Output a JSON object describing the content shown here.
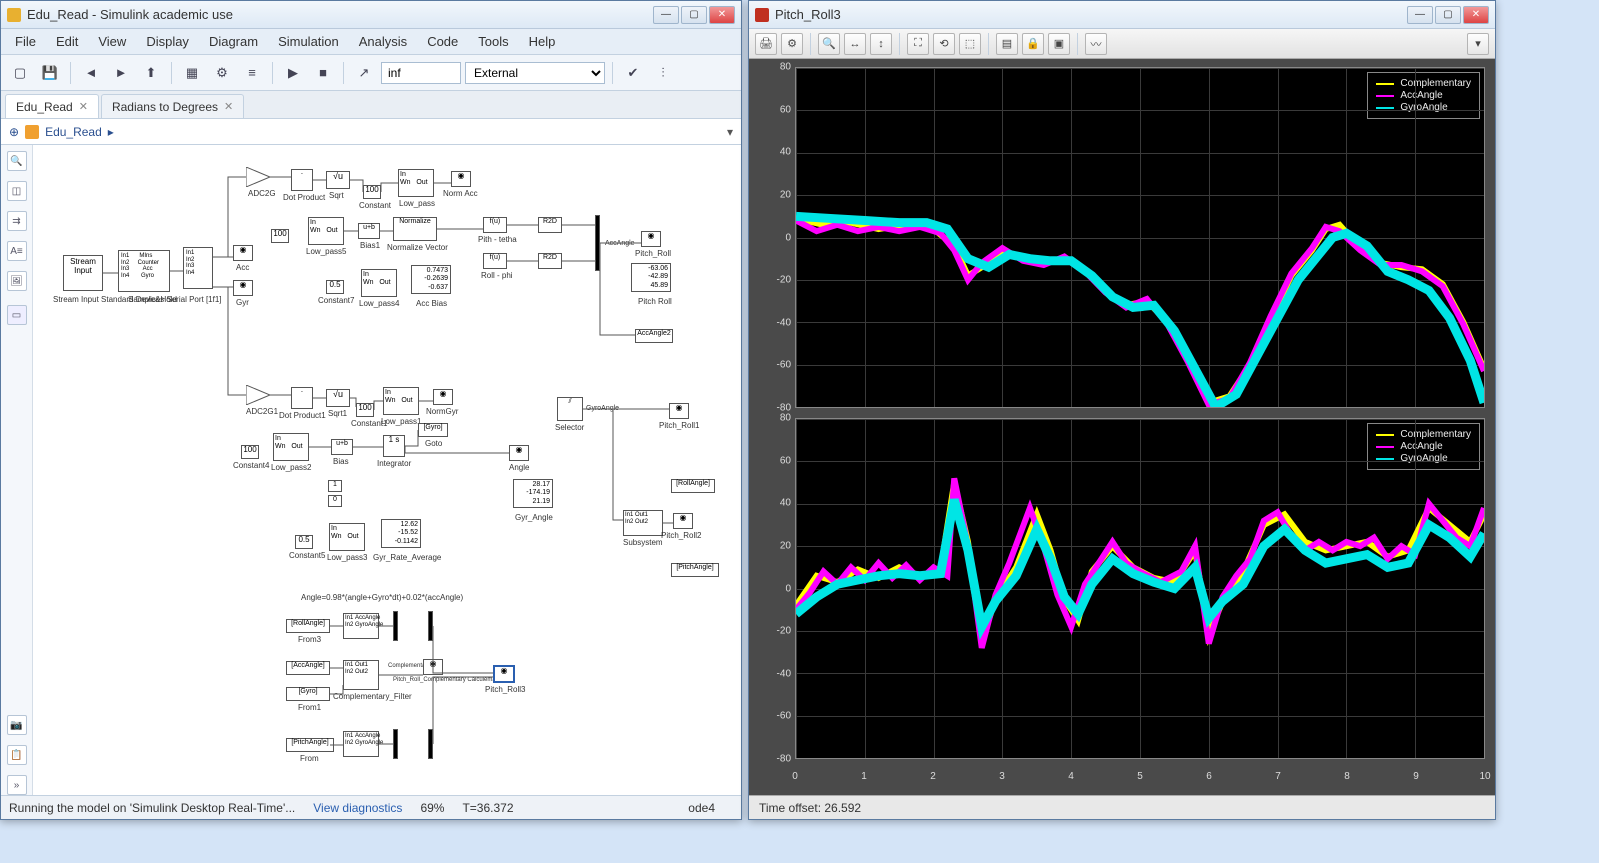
{
  "simulink": {
    "title": "Edu_Read - Simulink academic use",
    "menu": [
      "File",
      "Edit",
      "View",
      "Display",
      "Diagram",
      "Simulation",
      "Analysis",
      "Code",
      "Tools",
      "Help"
    ],
    "stop_time": "inf",
    "sim_mode": "External",
    "tabs": [
      {
        "label": "Edu_Read"
      },
      {
        "label": "Radians to Degrees"
      }
    ],
    "breadcrumb": "Edu_Read",
    "status": {
      "running": "Running the model on 'Simulink Desktop Real-Time'...",
      "diag": "View diagnostics",
      "pct": "69%",
      "t": "T=36.372",
      "solver": "ode4"
    },
    "blocks": {
      "stream_input": "Stream\nInput",
      "stream_input_sub": "Stream Input\nStandard Devices\nSerial Port [1f1]",
      "sample_hold": "Sample&Hold",
      "acc": "Acc",
      "gyr": "Gyr",
      "adc2g": "ADC2G",
      "adc2g1": "ADC2G1",
      "dot_product": "Dot Product",
      "dot_product1": "Dot Product1",
      "sqrt": "Sqrt",
      "sqrt1": "Sqrt1",
      "constant": "Constant",
      "constant1": "Constant1",
      "constant4": "Constant4",
      "constant5": "Constant5",
      "constant7": "Constant7",
      "const_100": "100",
      "const_05": "0.5",
      "const_1": "1",
      "low_pass": "Low_pass",
      "low_pass1": "Low_pass1",
      "low_pass2": "Low_pass2",
      "low_pass3": "Low_pass3",
      "low_pass4": "Low_pass4",
      "low_pass5": "Low_pass5",
      "norm_acc": "Norm Acc",
      "norm_gyr": "NormGyr",
      "normalize": "Normalize",
      "normalize_vector": "Normalize Vector",
      "bias": "Bias",
      "bias1": "Bias1",
      "r2d": "R2D",
      "pitch_theta": "Pith - tetha",
      "roll_phi": "Roll - phi",
      "acc_bias": "Acc Bias",
      "acc_bias_vals": [
        "0.7473",
        "-0.2639",
        "-0.637"
      ],
      "integrator": "Integrator",
      "goto": "Goto",
      "gyro_tag": "[Gyro]",
      "angle": "Angle",
      "selector": "Selector",
      "gyr_angle": "Gyr_Angle",
      "gyr_angle_vals": [
        "28.17",
        "-174.19",
        "21.19"
      ],
      "gyr_rate_avg": "Gyr_Rate_Average",
      "gyr_rate_vals": [
        "12.62",
        "-15.52",
        "-0.1142"
      ],
      "pitch_roll_disp": [
        "-63.06",
        "-42.89",
        "45.89"
      ],
      "pitch_roll": "Pitch Roll",
      "acc_angle": "AccAngle",
      "pitch_roll1": "Pitch_Roll1",
      "pitch_roll2": "Pitch_Roll2",
      "pitch_roll3": "Pitch_Roll3",
      "roll_angle_tag": "[RollAngle]",
      "acc_angle_tag": "[AccAngle2]",
      "pitch_angle_tag": "[PitchAngle]",
      "gyro_angle_tag": "GyroAngle",
      "subsystem": "Subsystem",
      "comment": "Angle=0.98*(angle+Gyro*dt)+0.02*(accAngle)",
      "from": "From",
      "from1": "From1",
      "from3": "From3",
      "comp_filter": "Complementary_Filter",
      "pitch_roll_comp": "Pitch_Roll_Complementary\nCalculemagicy",
      "complementary": "Complementary",
      "roll_angle_from": "[RollAngle]",
      "acc_angle_from": "[AccAngle]",
      "gyro_from": "[Gyro]",
      "pitch_angle_from": "[PitchAngle]",
      "in_wn": "In\nWn",
      "out": "Out",
      "u_b": "u+b",
      "one_s": "1\ns",
      "fu": "f(u)"
    }
  },
  "scope": {
    "title": "Pitch_Roll3",
    "time_offset": "Time offset:   26.592",
    "legend": [
      {
        "label": "Complementary",
        "color": "#ffff00"
      },
      {
        "label": "AccAngle",
        "color": "#ff00ff"
      },
      {
        "label": "GyroAngle",
        "color": "#00e5e5"
      }
    ],
    "plot1": {
      "ylim": [
        -80,
        80
      ],
      "ytick_step": 20,
      "xlim": [
        0,
        10
      ],
      "xtick_step": 1,
      "bg": "#000000",
      "grid": "#3a3a3a",
      "series": [
        {
          "color": "#ffff00",
          "width": 1,
          "data": [
            [
              0,
              9
            ],
            [
              0.4,
              6
            ],
            [
              0.8,
              7
            ],
            [
              1.2,
              4
            ],
            [
              1.6,
              6
            ],
            [
              2.0,
              4
            ],
            [
              2.3,
              -4
            ],
            [
              2.5,
              -18
            ],
            [
              2.7,
              -14
            ],
            [
              3.0,
              -6
            ],
            [
              3.3,
              -10
            ],
            [
              3.6,
              -12
            ],
            [
              3.9,
              -10
            ],
            [
              4.2,
              -15
            ],
            [
              4.5,
              -25
            ],
            [
              4.8,
              -32
            ],
            [
              5.1,
              -30
            ],
            [
              5.4,
              -40
            ],
            [
              5.7,
              -58
            ],
            [
              6.0,
              -78
            ],
            [
              6.3,
              -75
            ],
            [
              6.6,
              -60
            ],
            [
              6.9,
              -38
            ],
            [
              7.2,
              -18
            ],
            [
              7.5,
              -6
            ],
            [
              7.7,
              4
            ],
            [
              7.9,
              6
            ],
            [
              8.2,
              -5
            ],
            [
              8.5,
              -12
            ],
            [
              8.8,
              -14
            ],
            [
              9.1,
              -15
            ],
            [
              9.4,
              -22
            ],
            [
              9.7,
              -40
            ],
            [
              10,
              -62
            ]
          ]
        },
        {
          "color": "#ff00ff",
          "width": 1,
          "data": [
            [
              0,
              8
            ],
            [
              0.3,
              3
            ],
            [
              0.6,
              6
            ],
            [
              0.9,
              3
            ],
            [
              1.2,
              5
            ],
            [
              1.5,
              3
            ],
            [
              1.8,
              5
            ],
            [
              2.1,
              2
            ],
            [
              2.3,
              -6
            ],
            [
              2.5,
              -20
            ],
            [
              2.7,
              -12
            ],
            [
              3.0,
              -5
            ],
            [
              3.3,
              -11
            ],
            [
              3.6,
              -13
            ],
            [
              3.9,
              -9
            ],
            [
              4.2,
              -16
            ],
            [
              4.5,
              -26
            ],
            [
              4.8,
              -33
            ],
            [
              5.1,
              -29
            ],
            [
              5.4,
              -41
            ],
            [
              5.7,
              -59
            ],
            [
              6.0,
              -79
            ],
            [
              6.3,
              -76
            ],
            [
              6.6,
              -59
            ],
            [
              6.9,
              -37
            ],
            [
              7.2,
              -17
            ],
            [
              7.5,
              -5
            ],
            [
              7.7,
              5
            ],
            [
              7.9,
              3
            ],
            [
              8.2,
              -6
            ],
            [
              8.5,
              -13
            ],
            [
              8.8,
              -13
            ],
            [
              9.1,
              -16
            ],
            [
              9.4,
              -23
            ],
            [
              9.7,
              -41
            ],
            [
              10,
              -63
            ]
          ]
        },
        {
          "color": "#00e5e5",
          "width": 1.5,
          "data": [
            [
              0,
              10
            ],
            [
              0.5,
              9
            ],
            [
              1.0,
              8
            ],
            [
              1.5,
              7
            ],
            [
              1.9,
              7
            ],
            [
              2.2,
              4
            ],
            [
              2.5,
              -10
            ],
            [
              2.8,
              -14
            ],
            [
              3.1,
              -8
            ],
            [
              3.4,
              -10
            ],
            [
              3.7,
              -11
            ],
            [
              4.0,
              -11
            ],
            [
              4.3,
              -18
            ],
            [
              4.6,
              -28
            ],
            [
              4.9,
              -33
            ],
            [
              5.2,
              -32
            ],
            [
              5.5,
              -44
            ],
            [
              5.8,
              -62
            ],
            [
              6.1,
              -80
            ],
            [
              6.4,
              -74
            ],
            [
              6.7,
              -56
            ],
            [
              7.0,
              -38
            ],
            [
              7.3,
              -20
            ],
            [
              7.6,
              -8
            ],
            [
              7.8,
              0
            ],
            [
              8.0,
              2
            ],
            [
              8.3,
              -4
            ],
            [
              8.6,
              -16
            ],
            [
              8.9,
              -20
            ],
            [
              9.2,
              -25
            ],
            [
              9.5,
              -38
            ],
            [
              9.8,
              -58
            ],
            [
              10,
              -78
            ]
          ]
        }
      ]
    },
    "plot2": {
      "ylim": [
        -80,
        80
      ],
      "ytick_step": 20,
      "xlim": [
        0,
        10
      ],
      "xtick_step": 1,
      "bg": "#000000",
      "grid": "#3a3a3a",
      "series": [
        {
          "color": "#ffff00",
          "width": 1,
          "data": [
            [
              0,
              -8
            ],
            [
              0.3,
              6
            ],
            [
              0.6,
              3
            ],
            [
              0.9,
              9
            ],
            [
              1.2,
              5
            ],
            [
              1.5,
              10
            ],
            [
              1.8,
              6
            ],
            [
              2.1,
              9
            ],
            [
              2.3,
              50
            ],
            [
              2.5,
              22
            ],
            [
              2.7,
              -25
            ],
            [
              2.9,
              -5
            ],
            [
              3.2,
              10
            ],
            [
              3.5,
              35
            ],
            [
              3.7,
              18
            ],
            [
              3.9,
              -5
            ],
            [
              4.1,
              -15
            ],
            [
              4.3,
              8
            ],
            [
              4.6,
              20
            ],
            [
              4.9,
              10
            ],
            [
              5.2,
              5
            ],
            [
              5.5,
              3
            ],
            [
              5.8,
              18
            ],
            [
              6.0,
              -22
            ],
            [
              6.2,
              -6
            ],
            [
              6.5,
              8
            ],
            [
              6.8,
              30
            ],
            [
              7.1,
              35
            ],
            [
              7.4,
              22
            ],
            [
              7.7,
              18
            ],
            [
              8.0,
              20
            ],
            [
              8.3,
              22
            ],
            [
              8.6,
              15
            ],
            [
              8.9,
              18
            ],
            [
              9.2,
              38
            ],
            [
              9.5,
              30
            ],
            [
              9.8,
              22
            ],
            [
              10,
              35
            ]
          ]
        },
        {
          "color": "#ff00ff",
          "width": 1,
          "data": [
            [
              0,
              -10
            ],
            [
              0.2,
              -2
            ],
            [
              0.4,
              8
            ],
            [
              0.6,
              2
            ],
            [
              0.8,
              10
            ],
            [
              1.0,
              4
            ],
            [
              1.2,
              12
            ],
            [
              1.4,
              5
            ],
            [
              1.6,
              11
            ],
            [
              1.8,
              4
            ],
            [
              2.0,
              10
            ],
            [
              2.2,
              6
            ],
            [
              2.3,
              52
            ],
            [
              2.5,
              20
            ],
            [
              2.7,
              -28
            ],
            [
              2.9,
              -3
            ],
            [
              3.1,
              12
            ],
            [
              3.4,
              38
            ],
            [
              3.6,
              20
            ],
            [
              3.8,
              -3
            ],
            [
              4.0,
              -18
            ],
            [
              4.2,
              2
            ],
            [
              4.4,
              12
            ],
            [
              4.6,
              22
            ],
            [
              4.8,
              12
            ],
            [
              5.0,
              8
            ],
            [
              5.3,
              3
            ],
            [
              5.6,
              8
            ],
            [
              5.8,
              20
            ],
            [
              6.0,
              -26
            ],
            [
              6.2,
              -4
            ],
            [
              6.4,
              6
            ],
            [
              6.6,
              14
            ],
            [
              6.8,
              32
            ],
            [
              7.0,
              36
            ],
            [
              7.2,
              25
            ],
            [
              7.4,
              18
            ],
            [
              7.6,
              22
            ],
            [
              7.8,
              18
            ],
            [
              8.0,
              22
            ],
            [
              8.2,
              20
            ],
            [
              8.4,
              24
            ],
            [
              8.6,
              14
            ],
            [
              8.8,
              20
            ],
            [
              9.0,
              16
            ],
            [
              9.2,
              40
            ],
            [
              9.4,
              32
            ],
            [
              9.6,
              24
            ],
            [
              9.8,
              20
            ],
            [
              10,
              38
            ]
          ]
        },
        {
          "color": "#00e5e5",
          "width": 1.5,
          "data": [
            [
              0,
              -12
            ],
            [
              0.3,
              -4
            ],
            [
              0.6,
              2
            ],
            [
              0.9,
              4
            ],
            [
              1.2,
              6
            ],
            [
              1.5,
              7
            ],
            [
              1.8,
              6
            ],
            [
              2.1,
              7
            ],
            [
              2.3,
              42
            ],
            [
              2.5,
              18
            ],
            [
              2.7,
              -18
            ],
            [
              2.9,
              -6
            ],
            [
              3.2,
              6
            ],
            [
              3.5,
              28
            ],
            [
              3.7,
              14
            ],
            [
              3.9,
              -4
            ],
            [
              4.1,
              -12
            ],
            [
              4.3,
              2
            ],
            [
              4.6,
              14
            ],
            [
              4.9,
              7
            ],
            [
              5.2,
              3
            ],
            [
              5.5,
              0
            ],
            [
              5.8,
              10
            ],
            [
              6.0,
              -14
            ],
            [
              6.2,
              -6
            ],
            [
              6.5,
              2
            ],
            [
              6.8,
              20
            ],
            [
              7.1,
              28
            ],
            [
              7.4,
              18
            ],
            [
              7.7,
              12
            ],
            [
              8.0,
              14
            ],
            [
              8.3,
              16
            ],
            [
              8.6,
              10
            ],
            [
              8.9,
              12
            ],
            [
              9.2,
              30
            ],
            [
              9.5,
              24
            ],
            [
              9.8,
              15
            ],
            [
              10,
              26
            ]
          ]
        }
      ]
    }
  }
}
